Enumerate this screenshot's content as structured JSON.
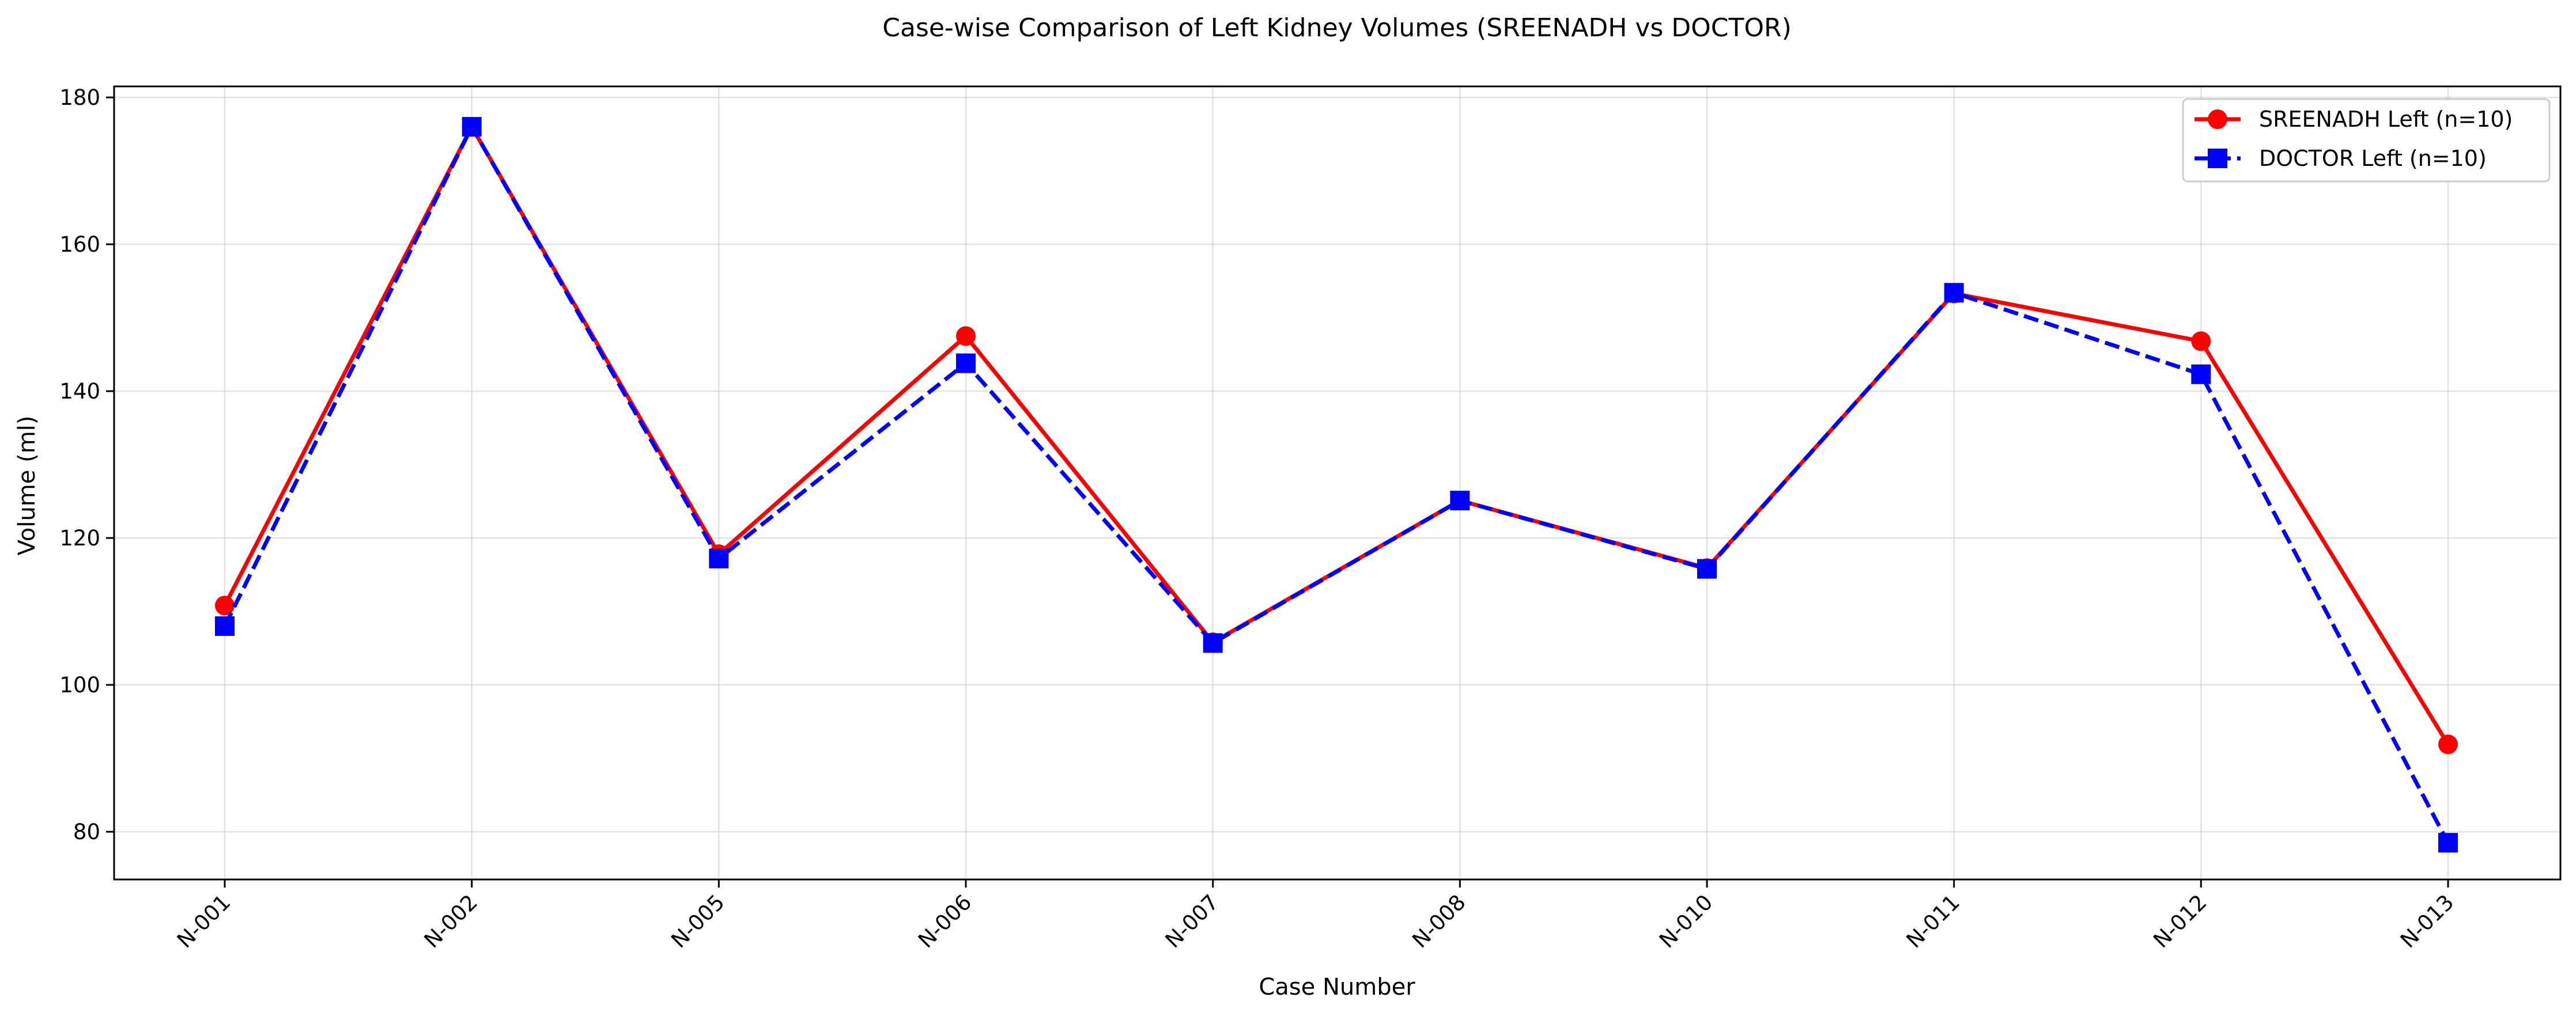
{
  "chart_data": {
    "type": "line",
    "title": "Case-wise Comparison of Left Kidney Volumes (SREENADH vs DOCTOR)",
    "xlabel": "Case Number",
    "ylabel": "Volume (ml)",
    "categories": [
      "N-001",
      "N-002",
      "N-005",
      "N-006",
      "N-007",
      "N-008",
      "N-010",
      "N-011",
      "N-012",
      "N-013"
    ],
    "ylim": [
      73.5,
      181.5
    ],
    "yticks": [
      80,
      100,
      120,
      140,
      160,
      180
    ],
    "grid": true,
    "legend_position": "top-right",
    "series": [
      {
        "name": "SREENADH Left (n=10)",
        "color": "#ff0000",
        "line_style": "solid",
        "marker": "circle",
        "values": [
          110.8,
          176.0,
          117.8,
          147.5,
          105.8,
          125.1,
          115.9,
          153.3,
          146.8,
          91.9
        ]
      },
      {
        "name": "DOCTOR Left (n=10)",
        "color": "#0000ff",
        "line_style": "dashed",
        "marker": "square",
        "values": [
          108.0,
          176.0,
          117.2,
          143.8,
          105.7,
          125.1,
          115.8,
          153.4,
          142.3,
          78.5
        ]
      }
    ]
  }
}
